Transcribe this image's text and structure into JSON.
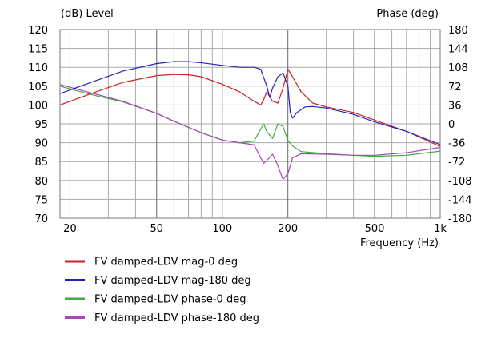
{
  "chart_data": {
    "type": "line",
    "title": "",
    "y_left_label": "(dB)  Level",
    "y_right_label": "Phase  (deg)",
    "x_label": "Frequency  (Hz)",
    "x_scale": "log",
    "x_range": [
      18,
      1000
    ],
    "y_left_range": [
      70,
      120
    ],
    "y_right_range": [
      -180,
      180
    ],
    "x_ticks": [
      20,
      50,
      100,
      200,
      500,
      1000
    ],
    "x_tick_labels": [
      "20",
      "50",
      "100",
      "200",
      "500",
      "1k"
    ],
    "y_left_ticks": [
      70,
      75,
      80,
      85,
      90,
      95,
      100,
      105,
      110,
      115,
      120
    ],
    "y_left_tick_labels": [
      "70",
      "75",
      "80",
      "85",
      "90",
      "95",
      "100",
      "105",
      "110",
      "115",
      "120"
    ],
    "y_right_ticks": [
      -180,
      -144,
      -108,
      -72,
      -36,
      0,
      36,
      72,
      108,
      144,
      180
    ],
    "y_right_tick_labels": [
      "-180",
      "-144",
      "-108",
      "-72",
      "-36",
      "0",
      "36",
      "72",
      "108",
      "144",
      "180"
    ],
    "grid": true,
    "legend_position": "bottom-left",
    "series": [
      {
        "name": "FV damped-LDV mag-0 deg",
        "color": "#cc2222",
        "axis": "left",
        "x": [
          18,
          25,
          35,
          50,
          60,
          70,
          80,
          100,
          120,
          140,
          150,
          155,
          160,
          170,
          180,
          190,
          200,
          210,
          230,
          260,
          300,
          400,
          500,
          700,
          1000
        ],
        "y": [
          100,
          103,
          106,
          107.8,
          108.1,
          108,
          107.5,
          105.5,
          103.5,
          101,
          100,
          101.5,
          103.5,
          101,
          100.5,
          104.5,
          109.5,
          107.5,
          103.5,
          100.5,
          99.5,
          98,
          96,
          93,
          89
        ]
      },
      {
        "name": "FV damped-LDV mag-180 deg",
        "color": "#2222bb",
        "axis": "left",
        "x": [
          18,
          25,
          35,
          50,
          60,
          70,
          80,
          100,
          120,
          140,
          150,
          160,
          165,
          170,
          180,
          190,
          200,
          205,
          210,
          220,
          240,
          260,
          300,
          400,
          500,
          700,
          1000
        ],
        "y": [
          103,
          106,
          109,
          111,
          111.5,
          111.5,
          111.2,
          110.5,
          110,
          110,
          109.5,
          105,
          102,
          104.5,
          107.5,
          108.5,
          105,
          98,
          96.5,
          98,
          99.5,
          99.6,
          99.2,
          97.5,
          95.5,
          93,
          89.5
        ]
      },
      {
        "name": "FV damped-LDV phase-0 deg",
        "color": "#44aa44",
        "axis": "right",
        "x": [
          18,
          25,
          35,
          50,
          60,
          80,
          100,
          120,
          140,
          150,
          155,
          160,
          170,
          180,
          190,
          200,
          210,
          230,
          300,
          400,
          500,
          700,
          1000
        ],
        "y": [
          72,
          56,
          42,
          20,
          5,
          -17,
          -31,
          -36,
          -33,
          -10,
          0,
          -15,
          -28,
          0,
          -5,
          -32,
          -42,
          -53,
          -57,
          -60,
          -62,
          -60,
          -52
        ]
      },
      {
        "name": "FV damped-LDV phase-180 deg",
        "color": "#aa44bb",
        "axis": "right",
        "x": [
          18,
          25,
          35,
          50,
          60,
          80,
          100,
          120,
          140,
          150,
          155,
          160,
          170,
          180,
          190,
          200,
          210,
          230,
          300,
          400,
          500,
          700,
          1000
        ],
        "y": [
          75,
          59,
          43,
          20,
          5,
          -17,
          -31,
          -36,
          -40,
          -65,
          -75,
          -70,
          -58,
          -80,
          -106,
          -95,
          -65,
          -57,
          -58,
          -60,
          -60,
          -55,
          -45
        ]
      }
    ]
  }
}
